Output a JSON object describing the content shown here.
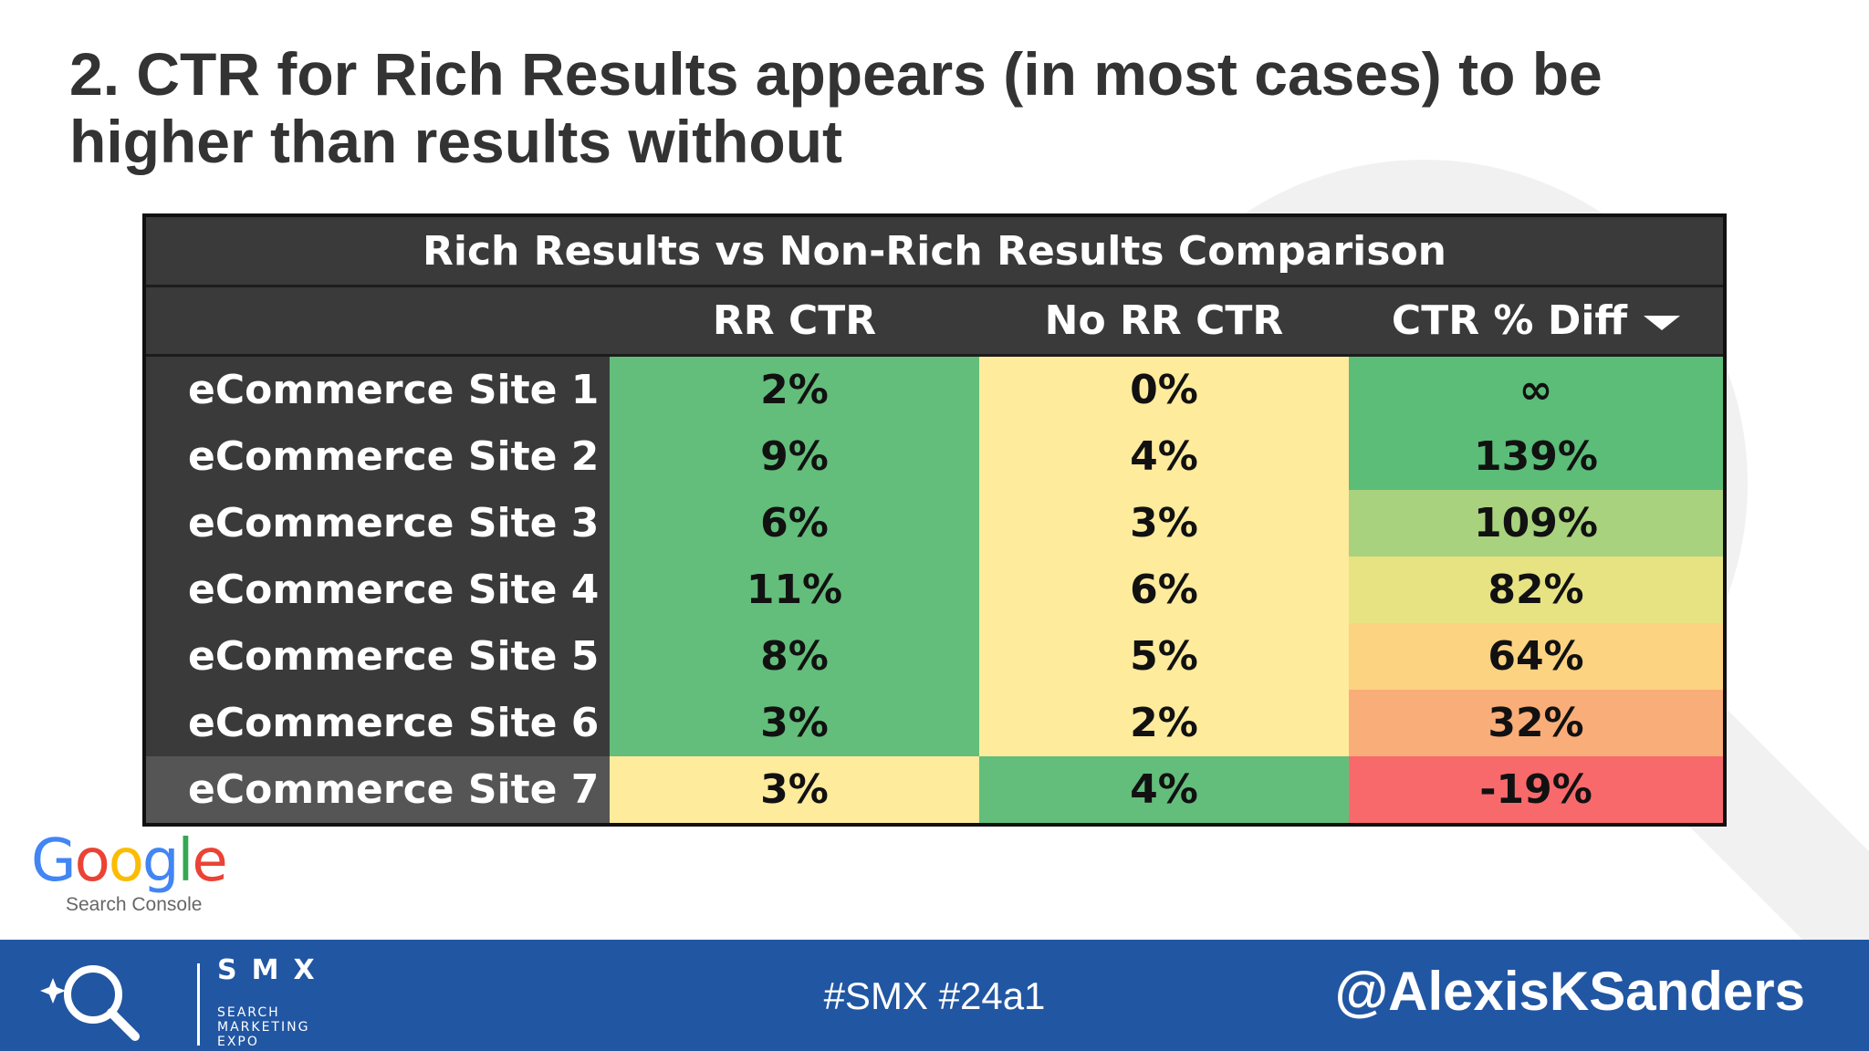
{
  "slide": {
    "title": "2. CTR for Rich Results appears (in most cases) to be higher than results without"
  },
  "table": {
    "caption": "Rich Results vs Non-Rich Results Comparison",
    "columns": [
      "",
      "RR CTR",
      "No RR CTR",
      "CTR % Diff"
    ],
    "sort_icon": "dropdown-caret-icon",
    "rows": [
      {
        "site": "eCommerce Site 1",
        "rr_ctr": "2%",
        "no_rr_ctr": "0%",
        "ctr_diff": "∞",
        "rr_color": "#63be7b",
        "no_rr_color": "#ffeb9c",
        "diff_color": "#5bbd78"
      },
      {
        "site": "eCommerce Site 2",
        "rr_ctr": "9%",
        "no_rr_ctr": "4%",
        "ctr_diff": "139%",
        "rr_color": "#63be7b",
        "no_rr_color": "#ffeb9c",
        "diff_color": "#5bbd78"
      },
      {
        "site": "eCommerce Site 3",
        "rr_ctr": "6%",
        "no_rr_ctr": "3%",
        "ctr_diff": "109%",
        "rr_color": "#63be7b",
        "no_rr_color": "#ffeb9c",
        "diff_color": "#a9d27e"
      },
      {
        "site": "eCommerce Site 4",
        "rr_ctr": "11%",
        "no_rr_ctr": "6%",
        "ctr_diff": "82%",
        "rr_color": "#63be7b",
        "no_rr_color": "#ffeb9c",
        "diff_color": "#e7e383"
      },
      {
        "site": "eCommerce Site 5",
        "rr_ctr": "8%",
        "no_rr_ctr": "5%",
        "ctr_diff": "64%",
        "rr_color": "#63be7b",
        "no_rr_color": "#ffeb9c",
        "diff_color": "#fcd381"
      },
      {
        "site": "eCommerce Site 6",
        "rr_ctr": "3%",
        "no_rr_ctr": "2%",
        "ctr_diff": "32%",
        "rr_color": "#63be7b",
        "no_rr_color": "#ffeb9c",
        "diff_color": "#f9ad78"
      },
      {
        "site": "eCommerce Site 7",
        "rr_ctr": "3%",
        "no_rr_ctr": "4%",
        "ctr_diff": "-19%",
        "rr_color": "#ffeb9c",
        "no_rr_color": "#63be7b",
        "diff_color": "#f8696b"
      }
    ]
  },
  "source_logo": {
    "word": "Google",
    "subtitle": "Search Console"
  },
  "footer": {
    "logo_letters": "SMX",
    "logo_tagline": [
      "SEARCH",
      "MARKETING",
      "EXPO"
    ],
    "hashtag": "#SMX #24a1",
    "handle": "@AlexisKSanders",
    "bar_color": "#2156a3"
  }
}
